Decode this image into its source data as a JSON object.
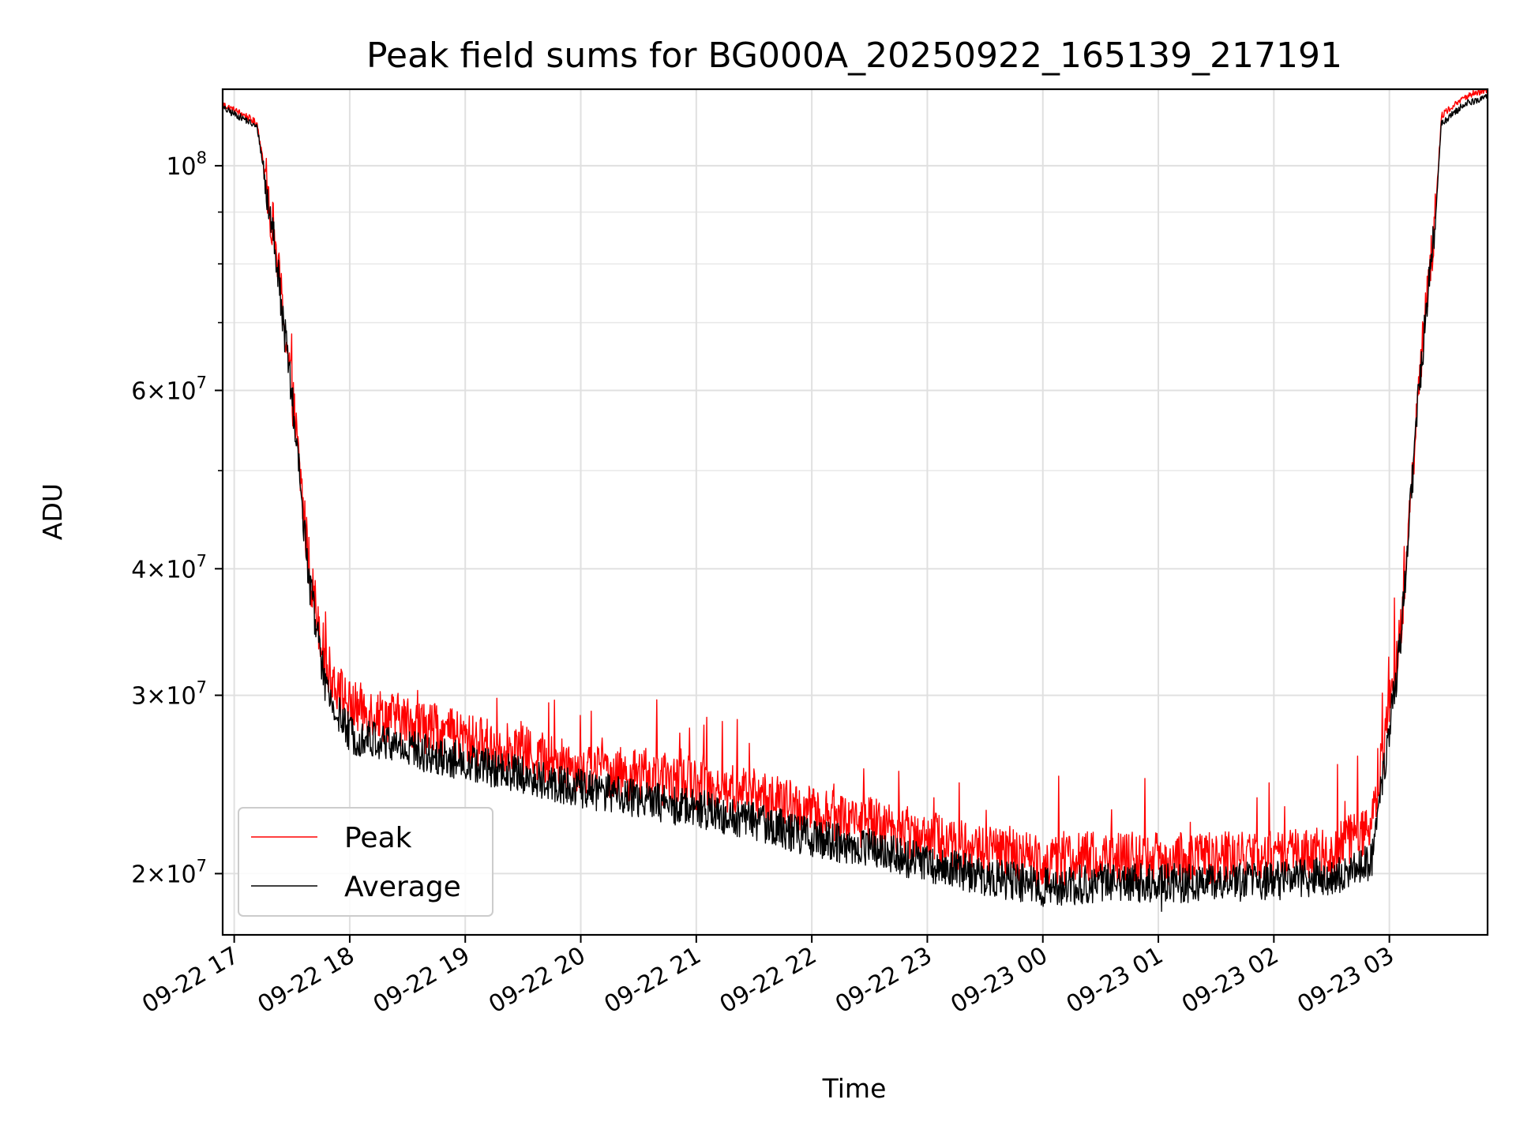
{
  "chart_data": {
    "type": "line",
    "title": "Peak field sums for BG000A_20250922_165139_217191",
    "xlabel": "Time",
    "ylabel": "ADU",
    "yscale": "log",
    "ylim": [
      17400000,
      119000000
    ],
    "xlim_hours": [
      -0.1,
      10.85
    ],
    "x_origin": "2025-09-22 17:00",
    "x_ticks": [
      {
        "hour": 0,
        "label": "09-22 17"
      },
      {
        "hour": 1,
        "label": "09-22 18"
      },
      {
        "hour": 2,
        "label": "09-22 19"
      },
      {
        "hour": 3,
        "label": "09-22 20"
      },
      {
        "hour": 4,
        "label": "09-22 21"
      },
      {
        "hour": 5,
        "label": "09-22 22"
      },
      {
        "hour": 6,
        "label": "09-22 23"
      },
      {
        "hour": 7,
        "label": "09-23 00"
      },
      {
        "hour": 8,
        "label": "09-23 01"
      },
      {
        "hour": 9,
        "label": "09-23 02"
      },
      {
        "hour": 10,
        "label": "09-23 03"
      }
    ],
    "y_ticks": [
      {
        "value": 100000000,
        "base": "10",
        "exp": "8",
        "mantissa": ""
      },
      {
        "value": 60000000,
        "base": "10",
        "exp": "7",
        "mantissa": "6"
      },
      {
        "value": 40000000,
        "base": "10",
        "exp": "7",
        "mantissa": "4"
      },
      {
        "value": 30000000,
        "base": "10",
        "exp": "7",
        "mantissa": "3"
      },
      {
        "value": 20000000,
        "base": "10",
        "exp": "7",
        "mantissa": "2"
      }
    ],
    "y_minor_ticks": [
      50000000,
      70000000,
      80000000,
      90000000
    ],
    "legend": {
      "position": "lower-left"
    },
    "series": [
      {
        "name": "Peak",
        "color": "#ff0000",
        "noise": 0.06,
        "spike_rate": 0.035,
        "spikes_to": 0.16,
        "trend": [
          [
            -0.1,
            115000000.0
          ],
          [
            0.1,
            112000000.0
          ],
          [
            0.2,
            110000000.0
          ],
          [
            0.35,
            85000000.0
          ],
          [
            0.5,
            60000000.0
          ],
          [
            0.65,
            40000000.0
          ],
          [
            0.8,
            32000000.0
          ],
          [
            1.0,
            29300000.0
          ],
          [
            1.5,
            28300000.0
          ],
          [
            2.0,
            27200000.0
          ],
          [
            2.5,
            26400000.0
          ],
          [
            3.0,
            25500000.0
          ],
          [
            3.5,
            25000000.0
          ],
          [
            4.0,
            24600000.0
          ],
          [
            4.5,
            24000000.0
          ],
          [
            5.0,
            23000000.0
          ],
          [
            5.5,
            22500000.0
          ],
          [
            6.0,
            21800000.0
          ],
          [
            6.5,
            21100000.0
          ],
          [
            7.0,
            20600000.0
          ],
          [
            7.5,
            20800000.0
          ],
          [
            8.0,
            20700000.0
          ],
          [
            8.5,
            20800000.0
          ],
          [
            9.0,
            20800000.0
          ],
          [
            9.5,
            21000000.0
          ],
          [
            9.85,
            22400000.0
          ],
          [
            10.1,
            35000000.0
          ],
          [
            10.25,
            60000000.0
          ],
          [
            10.4,
            90000000.0
          ],
          [
            10.45,
            112000000.0
          ],
          [
            10.65,
            117000000.0
          ],
          [
            10.85,
            119000000.0
          ]
        ]
      },
      {
        "name": "Average",
        "color": "#000000",
        "noise": 0.045,
        "spike_rate": 0.008,
        "spikes_to": -0.06,
        "trend": [
          [
            -0.1,
            114000000.0
          ],
          [
            0.1,
            111000000.0
          ],
          [
            0.2,
            109000000.0
          ],
          [
            0.35,
            84000000.0
          ],
          [
            0.5,
            59000000.0
          ],
          [
            0.65,
            39000000.0
          ],
          [
            0.8,
            30000000.0
          ],
          [
            1.0,
            27500000.0
          ],
          [
            1.5,
            26600000.0
          ],
          [
            2.0,
            25800000.0
          ],
          [
            2.5,
            25000000.0
          ],
          [
            3.0,
            24300000.0
          ],
          [
            3.5,
            23700000.0
          ],
          [
            4.0,
            23200000.0
          ],
          [
            4.5,
            22600000.0
          ],
          [
            5.0,
            21700000.0
          ],
          [
            5.5,
            21200000.0
          ],
          [
            6.0,
            20500000.0
          ],
          [
            6.5,
            19900000.0
          ],
          [
            7.0,
            19400000.0
          ],
          [
            7.5,
            19600000.0
          ],
          [
            8.0,
            19600000.0
          ],
          [
            8.5,
            19600000.0
          ],
          [
            9.0,
            19700000.0
          ],
          [
            9.5,
            19900000.0
          ],
          [
            9.85,
            20600000.0
          ],
          [
            10.1,
            34000000.0
          ],
          [
            10.25,
            59000000.0
          ],
          [
            10.4,
            89000000.0
          ],
          [
            10.45,
            110000000.0
          ],
          [
            10.65,
            115000000.0
          ],
          [
            10.85,
            117000000.0
          ]
        ]
      }
    ]
  }
}
